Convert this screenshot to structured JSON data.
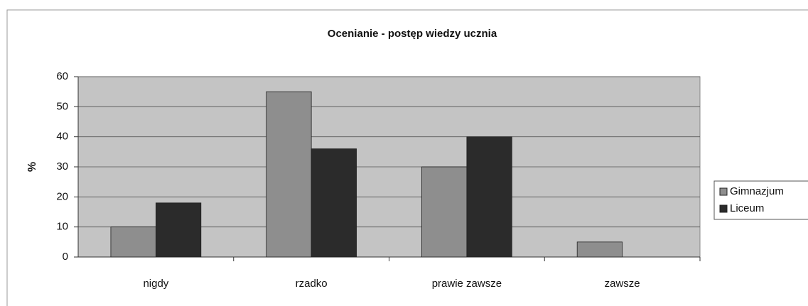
{
  "chart_data": {
    "type": "bar",
    "title": "Ocenianie - postęp wiedzy ucznia",
    "ylabel": "%",
    "categories": [
      "nigdy",
      "rzadko",
      "prawie zawsze",
      "zawsze"
    ],
    "series": [
      {
        "name": "Gimnazjum",
        "color": "#8e8e8e",
        "values": [
          10,
          55,
          30,
          5
        ]
      },
      {
        "name": "Liceum",
        "color": "#2b2b2b",
        "values": [
          18,
          36,
          40,
          0
        ]
      }
    ],
    "ylim": [
      0,
      60
    ],
    "yticks": [
      0,
      10,
      20,
      30,
      40,
      50,
      60
    ],
    "grid": true,
    "legend": "right"
  }
}
